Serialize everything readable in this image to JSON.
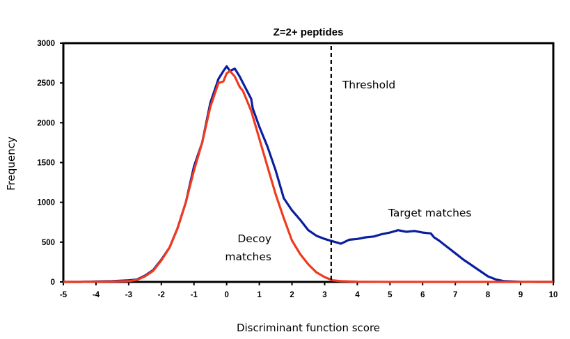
{
  "chart_data": {
    "type": "line",
    "title": "Z=2+ peptides",
    "xlabel": "Discriminant function score",
    "ylabel": "Frequency",
    "xlim": [
      -5,
      10
    ],
    "ylim": [
      0,
      3000
    ],
    "xticks": [
      -5,
      -4,
      -3,
      -2,
      -1,
      0,
      1,
      2,
      3,
      4,
      5,
      6,
      7,
      8,
      9,
      10
    ],
    "yticks": [
      0,
      500,
      1000,
      1500,
      2000,
      2500,
      3000
    ],
    "grid": false,
    "legend": "none",
    "threshold": {
      "x": 3.2,
      "label": "Threshold",
      "style": "dashed"
    },
    "annotations": [
      {
        "text_lines": [
          "Decoy",
          "matches"
        ],
        "series": "Decoy matches"
      },
      {
        "text_lines": [
          "Target matches"
        ],
        "series": "Target matches"
      }
    ],
    "series": [
      {
        "name": "Target matches",
        "color": "#0a1f9e",
        "x": [
          -5,
          -4.5,
          -4,
          -3.5,
          -3,
          -2.75,
          -2.5,
          -2.25,
          -2,
          -1.75,
          -1.5,
          -1.25,
          -1,
          -0.75,
          -0.5,
          -0.25,
          -0.1,
          0,
          0.1,
          0.25,
          0.4,
          0.5,
          0.75,
          0.8,
          1,
          1.25,
          1.5,
          1.75,
          2,
          2.25,
          2.5,
          2.75,
          3,
          3.25,
          3.5,
          3.75,
          4,
          4.25,
          4.5,
          4.75,
          5,
          5.25,
          5.5,
          5.75,
          6,
          6.25,
          6.35,
          6.5,
          6.75,
          7,
          7.25,
          7.5,
          7.75,
          8,
          8.25,
          8.5,
          9,
          9.5,
          10
        ],
        "y": [
          0,
          0,
          5,
          10,
          20,
          30,
          80,
          150,
          280,
          430,
          680,
          1000,
          1450,
          1750,
          2250,
          2550,
          2650,
          2710,
          2650,
          2680,
          2580,
          2500,
          2300,
          2180,
          1950,
          1700,
          1400,
          1050,
          900,
          780,
          650,
          580,
          540,
          510,
          480,
          530,
          540,
          560,
          570,
          600,
          620,
          650,
          630,
          640,
          620,
          610,
          560,
          520,
          440,
          360,
          280,
          210,
          140,
          70,
          30,
          10,
          2,
          0,
          0
        ]
      },
      {
        "name": "Decoy matches",
        "color": "#f03a1e",
        "x": [
          -5,
          -4.5,
          -4,
          -3.5,
          -3,
          -2.75,
          -2.5,
          -2.25,
          -2,
          -1.75,
          -1.5,
          -1.25,
          -1,
          -0.75,
          -0.5,
          -0.25,
          -0.1,
          0,
          0.1,
          0.25,
          0.4,
          0.5,
          0.75,
          1,
          1.25,
          1.5,
          1.75,
          2,
          2.25,
          2.5,
          2.75,
          3,
          3.25,
          3.5,
          4,
          5,
          6,
          7,
          8,
          9,
          10
        ],
        "y": [
          0,
          0,
          3,
          5,
          10,
          25,
          70,
          140,
          270,
          430,
          680,
          1000,
          1400,
          1750,
          2200,
          2500,
          2520,
          2620,
          2650,
          2580,
          2450,
          2400,
          2150,
          1800,
          1450,
          1100,
          800,
          520,
          350,
          220,
          120,
          60,
          20,
          10,
          3,
          0,
          0,
          0,
          0,
          0,
          0
        ]
      }
    ]
  }
}
